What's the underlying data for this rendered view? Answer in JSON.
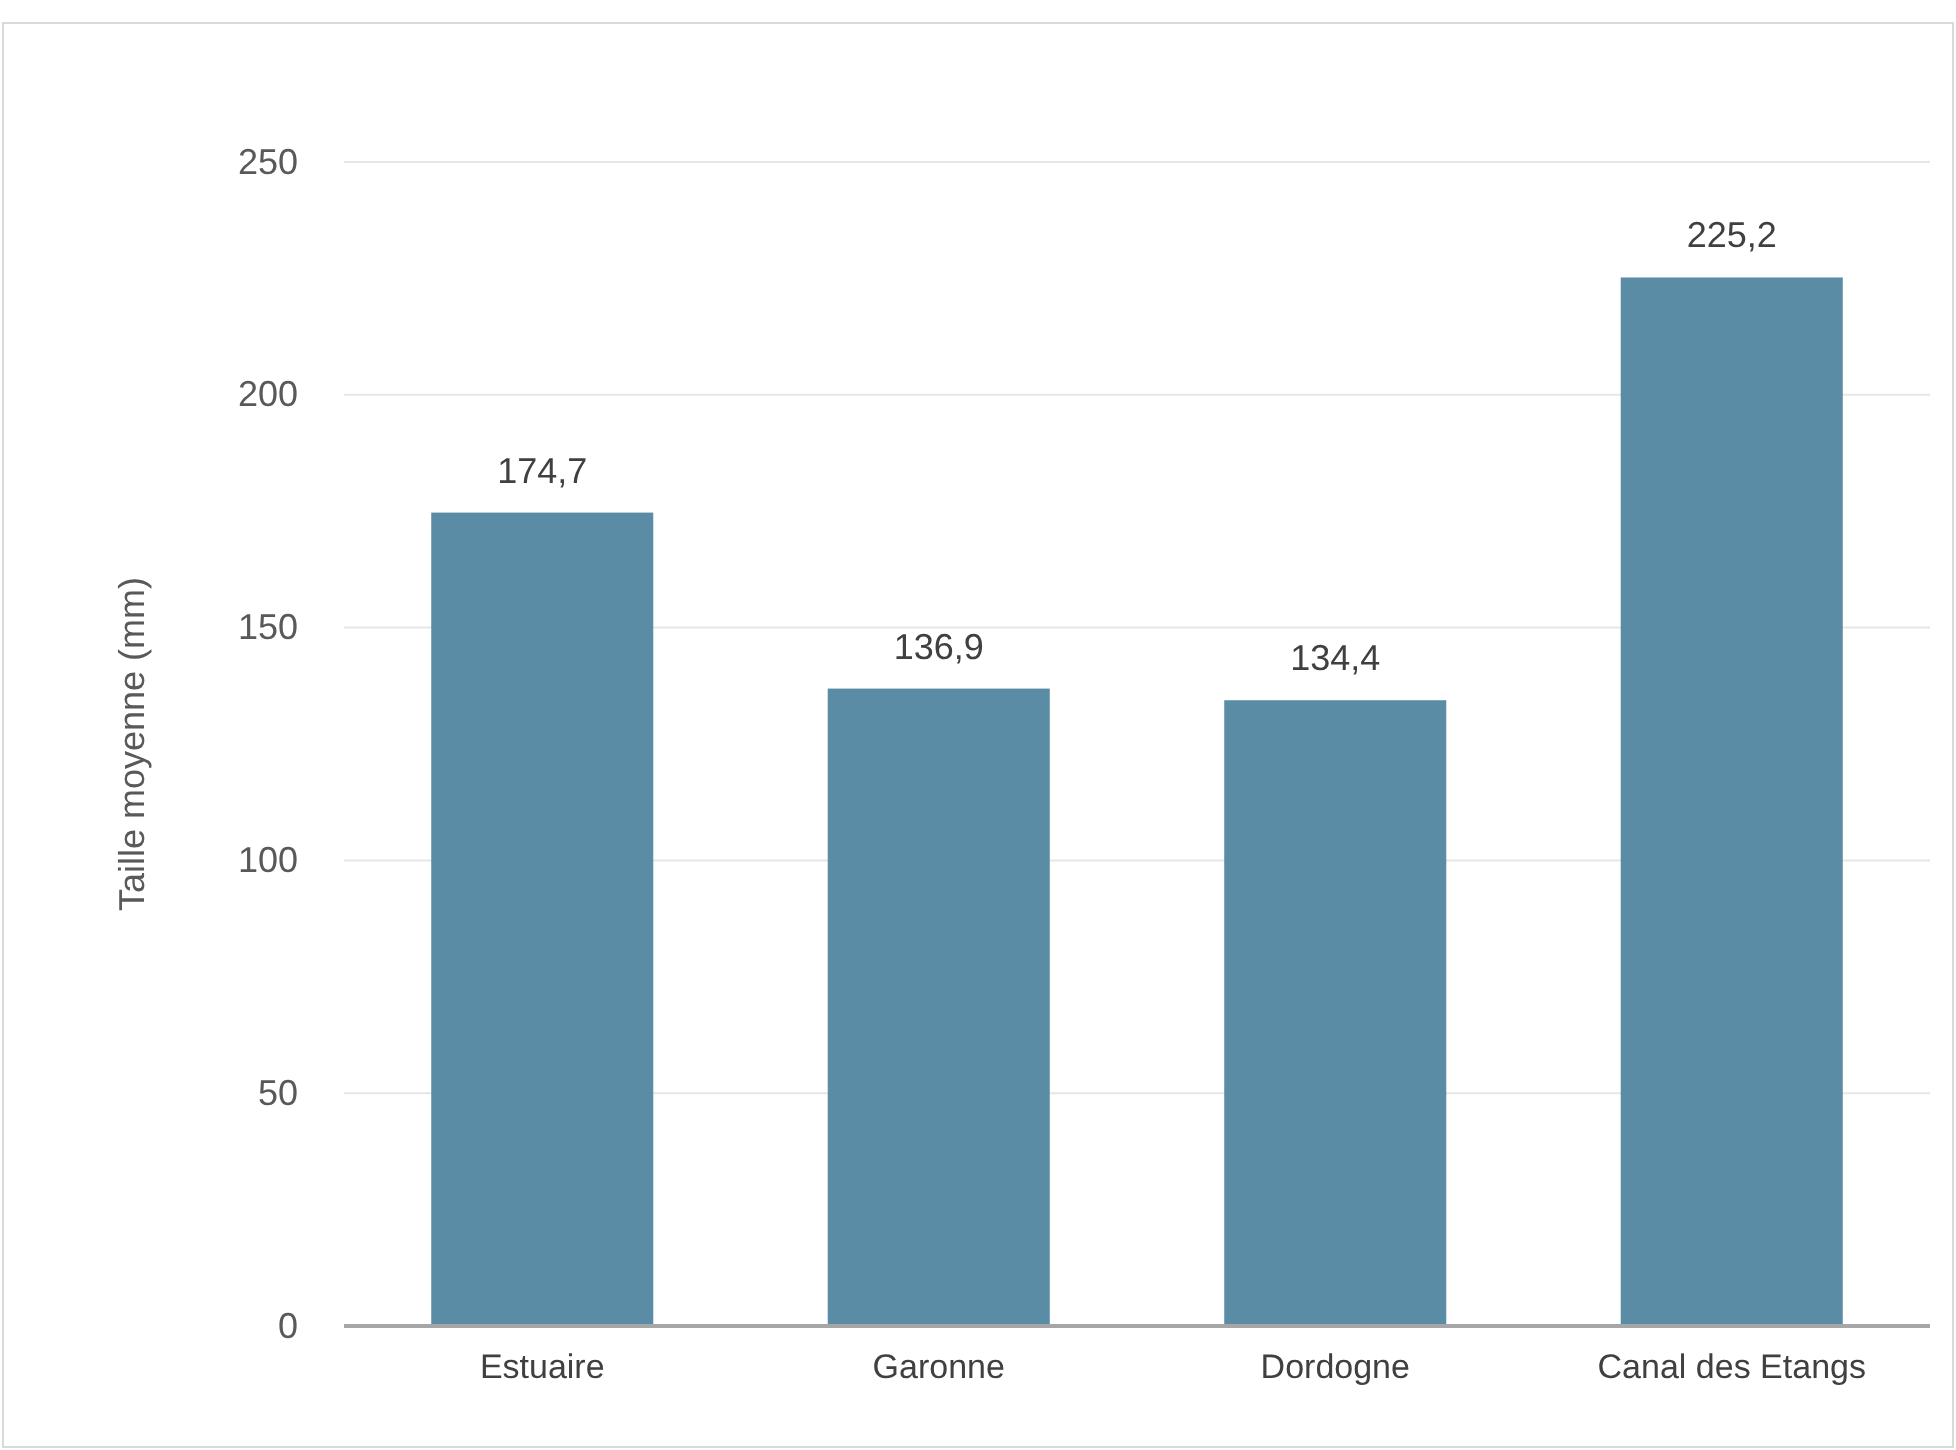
{
  "chart_data": {
    "type": "bar",
    "ylabel": "Taille moyenne (mm)",
    "categories": [
      "Estuaire",
      "Garonne",
      "Dordogne",
      "Canal des Etangs"
    ],
    "values": [
      174.7,
      136.9,
      134.4,
      225.2
    ],
    "value_labels": [
      "174,7",
      "136,9",
      "134,4",
      "225,2"
    ],
    "color": "#5a8ca6",
    "ylim": [
      0,
      250
    ],
    "yticks": [
      0,
      50,
      100,
      150,
      200,
      250
    ],
    "grid": "y"
  }
}
